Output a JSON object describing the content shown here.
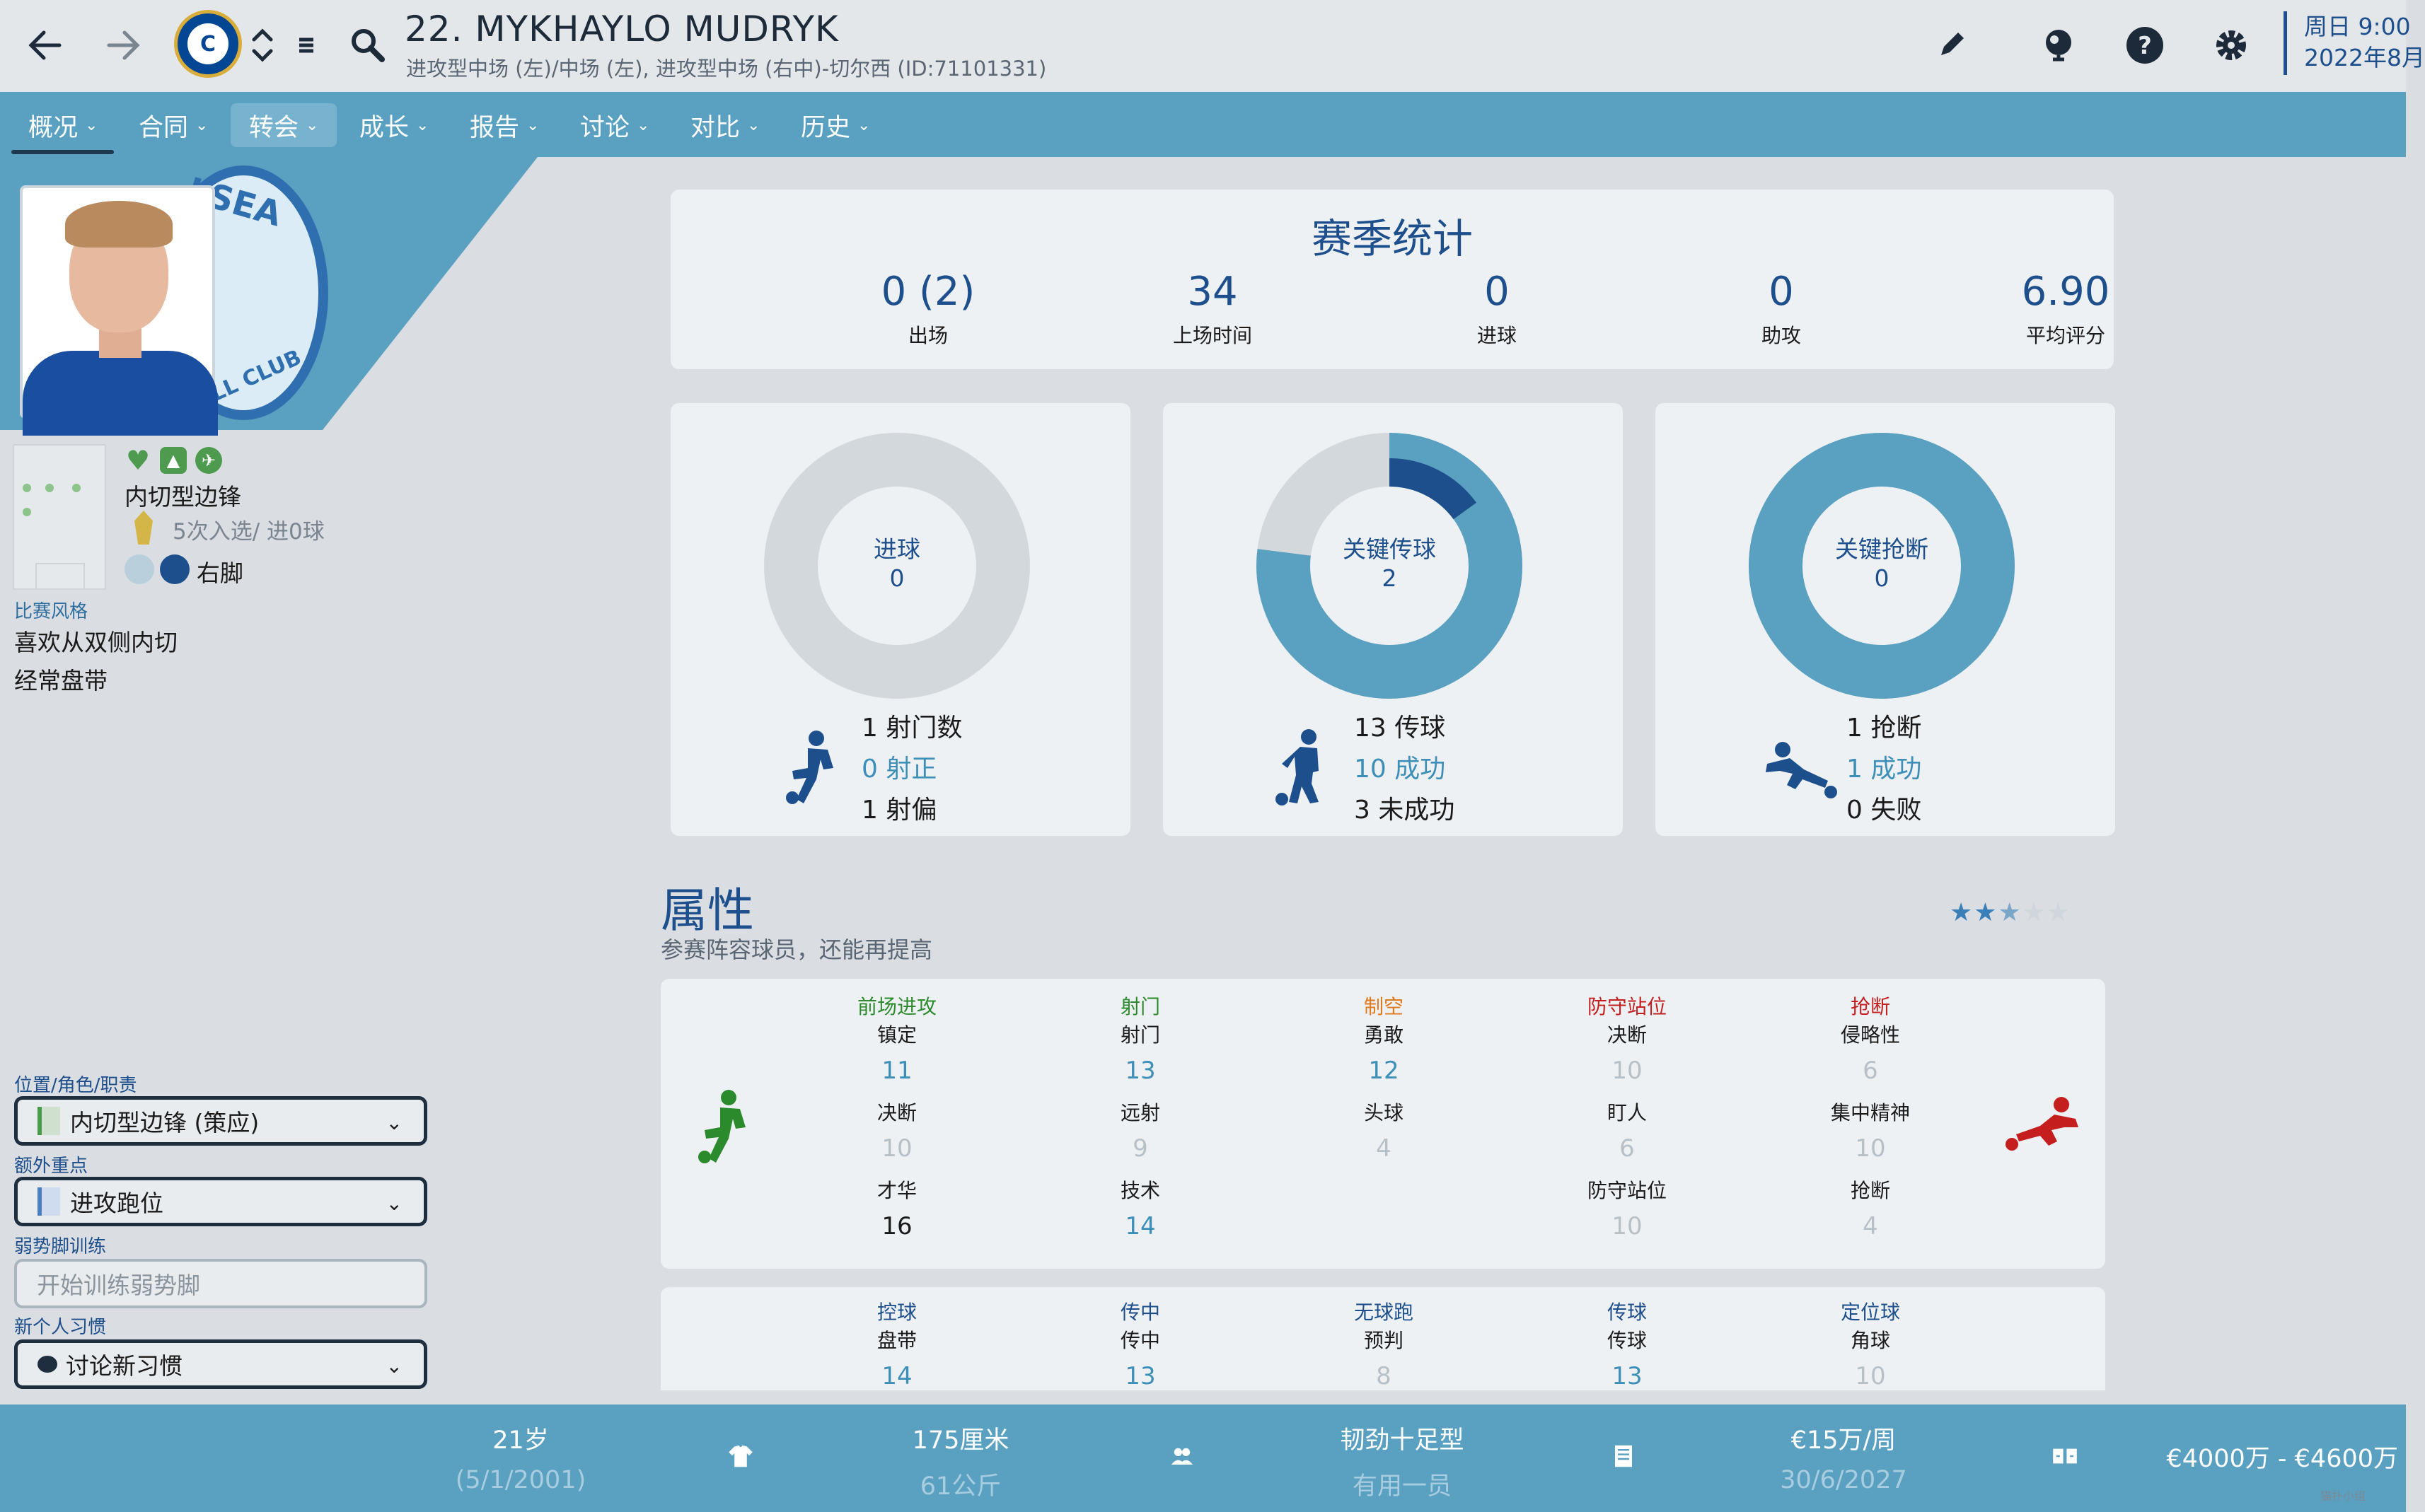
{
  "header": {
    "player_name": "22. MYKHAYLO MUDRYK",
    "positions": "进攻型中场 (左)/中场 (左), 进攻型中场 (右中)-切尔西 (ID:71101331)",
    "date_line1": "周日 9:00",
    "date_line2": "2022年8月",
    "icons": [
      "back-arrow-icon",
      "forward-arrow-icon",
      "club-crest-icon",
      "up-down-icon",
      "menu-icon",
      "search-icon",
      "edit-icon",
      "globe-icon",
      "help-icon",
      "gear-icon"
    ]
  },
  "nav": {
    "tabs": [
      {
        "label": "概况"
      },
      {
        "label": "合同"
      },
      {
        "label": "转会"
      },
      {
        "label": "成长"
      },
      {
        "label": "报告"
      },
      {
        "label": "讨论"
      },
      {
        "label": "对比"
      },
      {
        "label": "历史"
      }
    ]
  },
  "profile": {
    "crest_text_top": "LSEA",
    "crest_text_bottom": "LL CLUB",
    "role": "内切型边锋",
    "caps": "5次入选/ 进0球",
    "foot": "右脚",
    "style_label": "比赛风格",
    "style_items": [
      "喜欢从双侧内切",
      "经常盘带"
    ]
  },
  "controls": {
    "position_label": "位置/角色/职责",
    "position_value": "内切型边锋 (策应)",
    "focus_label": "额外重点",
    "focus_value": "进攻跑位",
    "weakfoot_label": "弱势脚训练",
    "weakfoot_placeholder": "开始训练弱势脚",
    "habit_label": "新个人习惯",
    "habit_value": "讨论新习惯"
  },
  "season": {
    "title": "赛季统计",
    "stats": [
      {
        "value": "0 (2)",
        "label": "出场"
      },
      {
        "value": "34",
        "label": "上场时间"
      },
      {
        "value": "0",
        "label": "进球"
      },
      {
        "value": "0",
        "label": "助攻"
      },
      {
        "value": "6.90",
        "label": "平均评分"
      }
    ]
  },
  "donuts": [
    {
      "label": "进球",
      "value": "0",
      "fraction": 0,
      "lines": [
        "1 射门数",
        "0 射正",
        "1 射偏"
      ]
    },
    {
      "label": "关键传球",
      "value": "2",
      "fraction": 0.77,
      "key_fraction": 0.15,
      "lines": [
        "13 传球",
        "10 成功",
        "3 未成功"
      ]
    },
    {
      "label": "关键抢断",
      "value": "0",
      "fraction": 1,
      "lines": [
        "1 抢断",
        "1 成功",
        "0 失败"
      ]
    }
  ],
  "attributes": {
    "title": "属性",
    "subtitle": "参赛阵容球员，还能再提高",
    "stars": "★★",
    "half_star": "★",
    "dim_stars": "★★",
    "star_rating": 2.5,
    "colors": {
      "green": "#2b8a2b",
      "orange": "#e07a1e",
      "red": "#c41e1e",
      "blue": "#1d4f8c"
    },
    "cols": [
      {
        "group": "前场进攻",
        "items": [
          {
            "n": "镇定",
            "v": "11"
          },
          {
            "n": "决断",
            "v": "10"
          },
          {
            "n": "才华",
            "v": "16"
          }
        ]
      },
      {
        "group": "射门",
        "items": [
          {
            "n": "射门",
            "v": "13"
          },
          {
            "n": "远射",
            "v": "9"
          },
          {
            "n": "技术",
            "v": "14"
          }
        ]
      },
      {
        "group": "制空",
        "items": [
          {
            "n": "勇敢",
            "v": "12"
          },
          {
            "n": "头球",
            "v": "4"
          }
        ]
      },
      {
        "group": "防守站位",
        "items": [
          {
            "n": "决断",
            "v": "10"
          },
          {
            "n": "盯人",
            "v": "6"
          },
          {
            "n": "防守站位",
            "v": "10"
          }
        ]
      },
      {
        "group": "抢断",
        "items": [
          {
            "n": "侵略性",
            "v": "6"
          },
          {
            "n": "集中精神",
            "v": "10"
          },
          {
            "n": "抢断",
            "v": "4"
          }
        ]
      }
    ],
    "cols2": [
      {
        "group": "控球",
        "n": "盘带",
        "v": "14"
      },
      {
        "group": "传中",
        "n": "传中",
        "v": "13"
      },
      {
        "group": "无球跑",
        "n": "预判",
        "v": "8"
      },
      {
        "group": "传球",
        "n": "传球",
        "v": "13"
      },
      {
        "group": "定位球",
        "n": "角球",
        "v": "10"
      }
    ]
  },
  "footer": {
    "age": "21岁",
    "dob": "(5/1/2001)",
    "height": "175厘米",
    "weight": "61公斤",
    "personality": "韧劲十足型",
    "status": "有用一员",
    "wage": "€15万/周",
    "contract_end": "30/6/2027",
    "value": "€4000万 - €4600万"
  },
  "watermark": "猫扑小组"
}
